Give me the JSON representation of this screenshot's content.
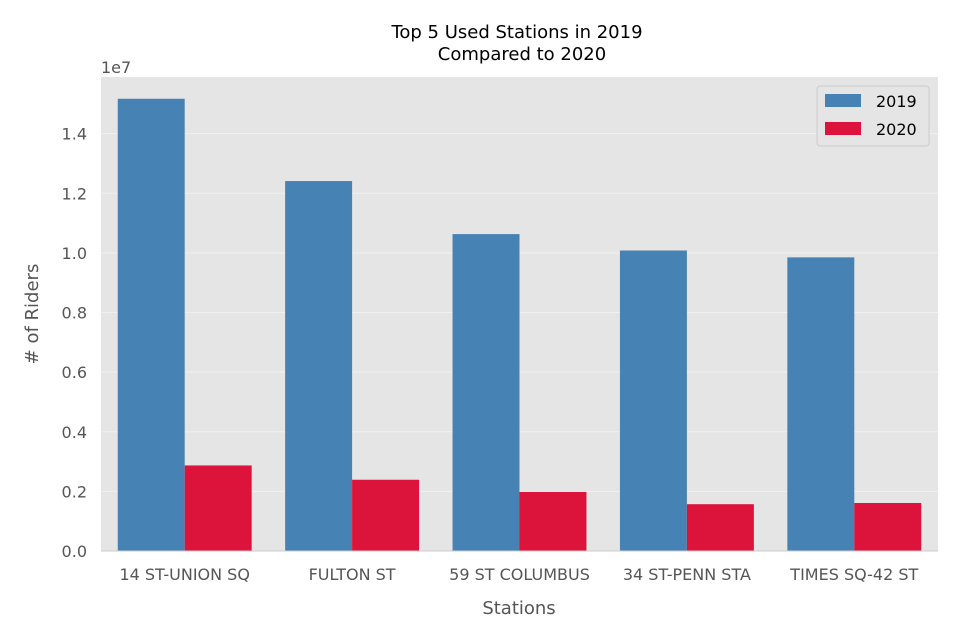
{
  "chart_data": {
    "type": "bar",
    "title_lines": [
      "Top 5 Used Stations in 2019",
      "Compared to 2020"
    ],
    "xlabel": "Stations",
    "ylabel": "# of Riders",
    "y_offset_label": "1e7",
    "categories": [
      "14 ST-UNION SQ",
      "FULTON ST",
      "59 ST COLUMBUS",
      "34 ST-PENN STA",
      "TIMES SQ-42 ST"
    ],
    "series": [
      {
        "name": "2019",
        "color": "#4682b4",
        "values": [
          15170000,
          12410000,
          10630000,
          10080000,
          9850000
        ]
      },
      {
        "name": "2020",
        "color": "#dc143c",
        "values": [
          2870000,
          2390000,
          1980000,
          1570000,
          1610000
        ]
      }
    ],
    "ylim": [
      0,
      15900000
    ],
    "y_ticks": [
      0,
      2000000,
      4000000,
      6000000,
      8000000,
      10000000,
      12000000,
      14000000
    ],
    "y_tick_labels": [
      "0.0",
      "0.2",
      "0.4",
      "0.6",
      "0.8",
      "1.0",
      "1.2",
      "1.4"
    ],
    "grid": true,
    "legend_position": "top-right",
    "background_color": "#e5e5e5",
    "grid_color": "#f0f0f0"
  }
}
